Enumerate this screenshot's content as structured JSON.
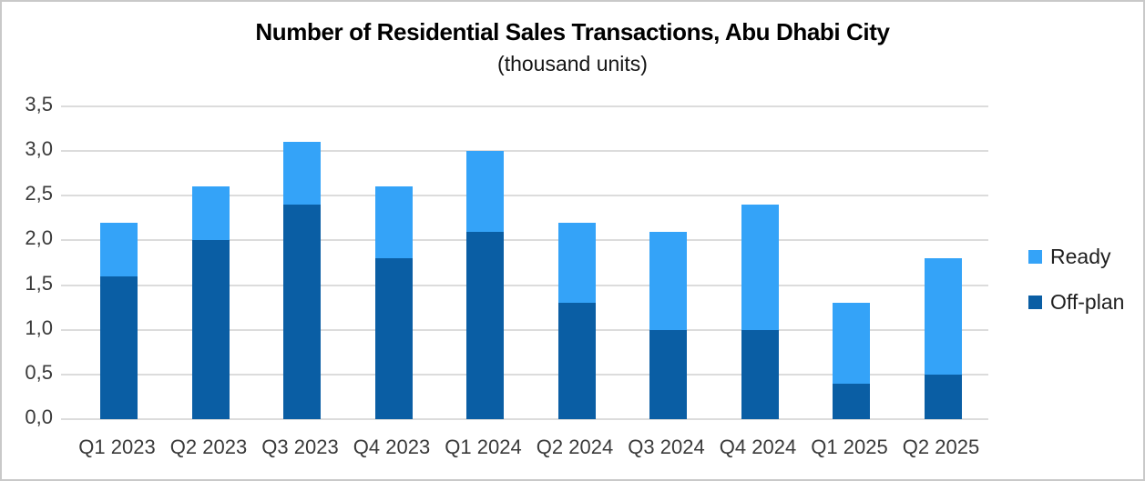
{
  "chart": {
    "title": "Number of Residential Sales Transactions, Abu Dhabi City",
    "subtitle": "(thousand units)",
    "legend": [
      {
        "label": "Ready",
        "series_key": "ready"
      },
      {
        "label": "Off-plan",
        "series_key": "offplan"
      }
    ],
    "colors": {
      "ready": "#34A3F8",
      "offplan": "#0A5EA4",
      "gridline": "#DCDCDC",
      "axis_text": "#3A3A3A",
      "title_text": "#000000",
      "border": "#C9C9C9",
      "background": "#FFFFFF"
    }
  },
  "chart_data": {
    "type": "bar",
    "stacked": true,
    "title": "Number of Residential Sales Transactions, Abu Dhabi City",
    "subtitle": "(thousand units)",
    "categories": [
      "Q1 2023",
      "Q2 2023",
      "Q3 2023",
      "Q4 2023",
      "Q1 2024",
      "Q2 2024",
      "Q3 2024",
      "Q4 2024",
      "Q1 2025",
      "Q2 2025"
    ],
    "series": [
      {
        "name": "Off-plan",
        "key": "offplan",
        "values": [
          1.6,
          2.0,
          2.4,
          1.8,
          2.1,
          1.3,
          1.0,
          1.0,
          0.4,
          0.5
        ]
      },
      {
        "name": "Ready",
        "key": "ready",
        "values": [
          0.6,
          0.6,
          0.7,
          0.8,
          0.9,
          0.9,
          1.1,
          1.4,
          0.9,
          1.3
        ]
      }
    ],
    "xlabel": "",
    "ylabel": "",
    "ylim": [
      0,
      3.5
    ],
    "yticks": [
      {
        "value": 0.0,
        "label": "0,0"
      },
      {
        "value": 0.5,
        "label": "0,5"
      },
      {
        "value": 1.0,
        "label": "1,0"
      },
      {
        "value": 1.5,
        "label": "1,5"
      },
      {
        "value": 2.0,
        "label": "2,0"
      },
      {
        "value": 2.5,
        "label": "2,5"
      },
      {
        "value": 3.0,
        "label": "3,0"
      },
      {
        "value": 3.5,
        "label": "3,5"
      }
    ],
    "grid": "horizontal",
    "legend_position": "right",
    "decimal_separator": ","
  }
}
